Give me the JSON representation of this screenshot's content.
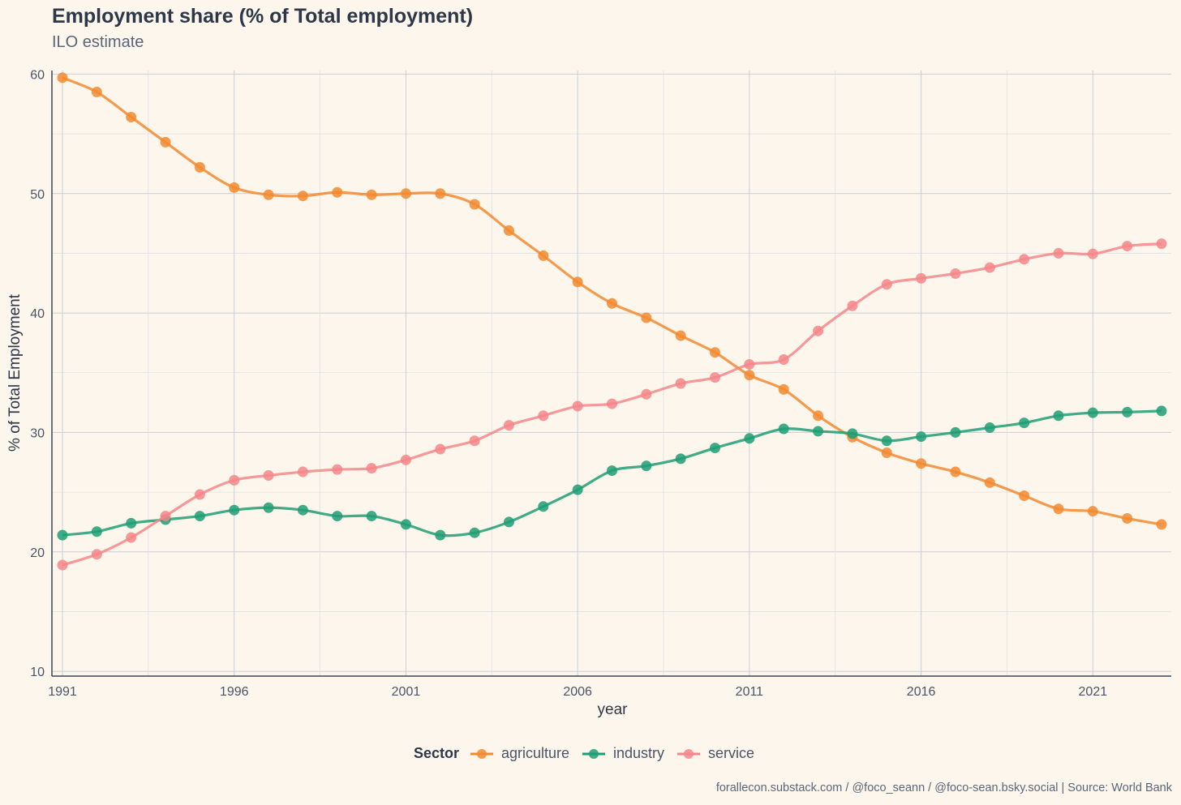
{
  "chart_data": {
    "type": "line",
    "title": "Employment share (% of Total employment)",
    "subtitle": "ILO estimate",
    "xlabel": "year",
    "ylabel": "% of Total Employment",
    "caption": "forallecon.substack.com / @foco_seann / @foco-sean.bsky.social | Source: World Bank",
    "legend_title": "Sector",
    "legend_position": "bottom",
    "grid": true,
    "xlim": [
      1991,
      2023
    ],
    "ylim": [
      10,
      60
    ],
    "xticks": [
      1991,
      1996,
      2001,
      2006,
      2011,
      2016,
      2021
    ],
    "yticks": [
      10,
      20,
      30,
      40,
      50,
      60
    ],
    "x": [
      1991,
      1992,
      1993,
      1994,
      1995,
      1996,
      1997,
      1998,
      1999,
      2000,
      2001,
      2002,
      2003,
      2004,
      2005,
      2006,
      2007,
      2008,
      2009,
      2010,
      2011,
      2012,
      2013,
      2014,
      2015,
      2016,
      2017,
      2018,
      2019,
      2020,
      2021,
      2022,
      2023
    ],
    "series": [
      {
        "name": "agriculture",
        "color": "#f28a30",
        "values": [
          59.7,
          58.5,
          56.4,
          54.3,
          52.2,
          50.5,
          49.9,
          49.8,
          50.1,
          49.9,
          50.0,
          50.0,
          49.1,
          46.9,
          44.8,
          42.6,
          40.8,
          39.6,
          38.1,
          36.7,
          34.8,
          33.6,
          31.4,
          29.6,
          28.3,
          27.4,
          26.7,
          25.8,
          24.7,
          23.6,
          23.4,
          22.8,
          22.3
        ]
      },
      {
        "name": "industry",
        "color": "#1f9e74",
        "values": [
          21.4,
          21.7,
          22.4,
          22.7,
          23.0,
          23.5,
          23.7,
          23.5,
          23.0,
          23.0,
          22.3,
          21.4,
          21.6,
          22.5,
          23.8,
          25.2,
          26.8,
          27.2,
          27.8,
          28.7,
          29.5,
          30.3,
          30.1,
          29.9,
          29.3,
          29.65,
          30.0,
          30.4,
          30.8,
          31.4,
          31.65,
          31.7,
          31.8
        ]
      },
      {
        "name": "service",
        "color": "#f4868a",
        "values": [
          18.9,
          19.8,
          21.2,
          23.0,
          24.8,
          26.0,
          26.4,
          26.7,
          26.9,
          27.0,
          27.7,
          28.6,
          29.3,
          30.6,
          31.4,
          32.2,
          32.4,
          33.2,
          34.1,
          34.6,
          35.7,
          36.1,
          38.5,
          40.6,
          42.4,
          42.9,
          43.3,
          43.8,
          44.5,
          45.0,
          44.95,
          45.6,
          45.8
        ]
      }
    ]
  }
}
